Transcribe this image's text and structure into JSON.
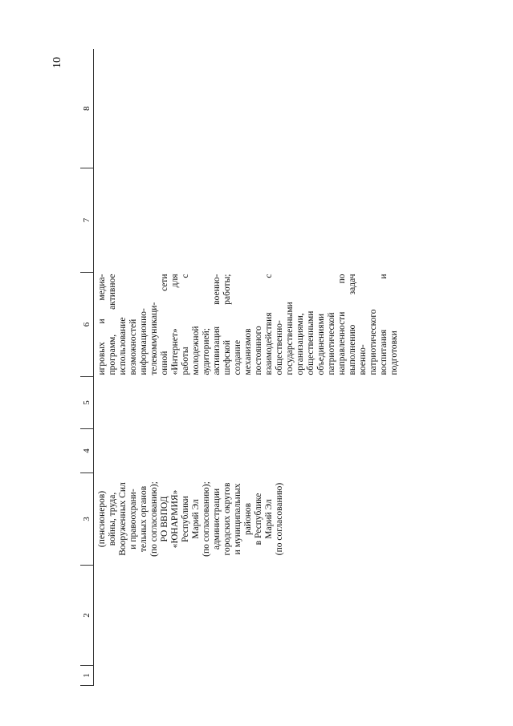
{
  "page_number": "10",
  "table": {
    "header": [
      "1",
      "2",
      "3",
      "4",
      "5",
      "6",
      "7",
      "8"
    ],
    "rows": [
      [
        "",
        "",
        [
          "(пенсионеров)",
          "войны, труда,",
          "Вооруженных Сил",
          "и правоохрани-",
          "тельных органов",
          "(по согласованию);",
          "РО ВВПОД",
          "«ЮНАРМИЯ»",
          "Республики",
          "Марий Эл",
          "(по согласованию);",
          "администрации",
          "городских округов",
          "и муниципальных",
          "районов",
          "в Республике",
          "Марий Эл",
          "(по согласованию)"
        ],
        "",
        "",
        [
          "игровых и медиа-",
          "программ, активное",
          "использование",
          "возможностей",
          "информационно-",
          "телекоммуникаци-",
          "онной сети",
          "«Интернет» для",
          "работы с",
          "молодежной",
          "аудиторией;",
          "активизация военно-",
          "шефской работы;",
          "создание",
          "механизмов",
          "постоянного",
          "взаимодействия с",
          "общественно-",
          "государственными",
          "организациями,",
          "общественными",
          "объединениями",
          "патриотической",
          "направленности по",
          "выполнению задач",
          "военно-",
          "патриотического",
          "воспитания и",
          "подготовки"
        ],
        "",
        ""
      ]
    ]
  }
}
